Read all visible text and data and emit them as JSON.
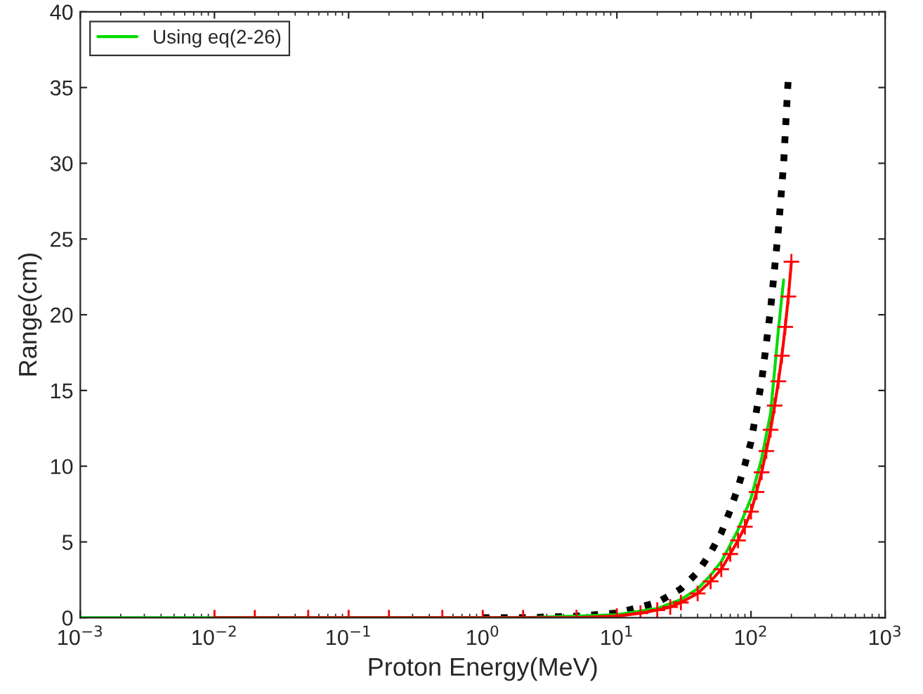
{
  "chart_data": {
    "type": "line",
    "xlabel": "Proton Energy(MeV)",
    "ylabel": "Range(cm)",
    "log": "x",
    "xlim": [
      0.001,
      1000
    ],
    "xticks": [
      {
        "value": 0.001,
        "label": "10$^{−3}$"
      },
      {
        "value": 0.01,
        "label": "10$^{−2}$"
      },
      {
        "value": 0.1,
        "label": "10$^{−1}$"
      },
      {
        "value": 1,
        "label": "10$^{0}$"
      },
      {
        "value": 10,
        "label": "10$^{1}$"
      },
      {
        "value": 100,
        "label": "10$^{2}$"
      },
      {
        "value": 1000,
        "label": "10$^{3}$"
      }
    ],
    "ylim": [
      0,
      40
    ],
    "yticks": [
      0,
      5,
      10,
      15,
      20,
      25,
      30,
      35,
      40
    ],
    "legend": "top left",
    "grid": false,
    "series": [
      {
        "color": "#000000",
        "line_style": "dotted",
        "marker": "none",
        "x": [
          1,
          2,
          5,
          10,
          20,
          30,
          40,
          50,
          60,
          70,
          80,
          90,
          100,
          120,
          140,
          160,
          175,
          190
        ],
        "values": [
          0,
          0,
          0.1,
          0.3,
          1.0,
          1.9,
          3.0,
          4.3,
          5.6,
          7.1,
          8.6,
          10.1,
          11.6,
          15.6,
          20.4,
          25.6,
          30,
          35.8
        ]
      },
      {
        "name": "Using eq(2-26)",
        "color": "#00dd00",
        "line_style": "solid",
        "marker": "none",
        "x": [
          0.001,
          0.01,
          0.1,
          1,
          2,
          5,
          10,
          20,
          30,
          40,
          50,
          60,
          70,
          80,
          90,
          100,
          120,
          140,
          160,
          175
        ],
        "values": [
          0,
          0,
          0,
          0,
          0,
          0.1,
          0.2,
          0.6,
          1.2,
          1.9,
          2.8,
          3.7,
          4.8,
          5.8,
          6.9,
          7.9,
          10.5,
          13.5,
          19.0,
          22.3
        ]
      },
      {
        "color": "#ff0000",
        "line_style": "solid",
        "marker": "cross",
        "x": [
          0.01,
          0.02,
          0.05,
          0.1,
          0.2,
          0.5,
          1,
          2,
          5,
          10,
          15,
          20,
          25,
          30,
          40,
          50,
          60,
          70,
          80,
          90,
          100,
          110,
          120,
          130,
          140,
          150,
          160,
          170,
          180,
          190,
          200
        ],
        "values": [
          0,
          0,
          0,
          0,
          0,
          0,
          0,
          0,
          0,
          0.1,
          0.3,
          0.5,
          0.7,
          1.0,
          1.6,
          2.4,
          3.2,
          4.2,
          5.1,
          6.0,
          7.0,
          8.3,
          9.6,
          11.0,
          12.4,
          14.0,
          15.6,
          17.3,
          19.2,
          21.2,
          23.5
        ]
      }
    ]
  }
}
